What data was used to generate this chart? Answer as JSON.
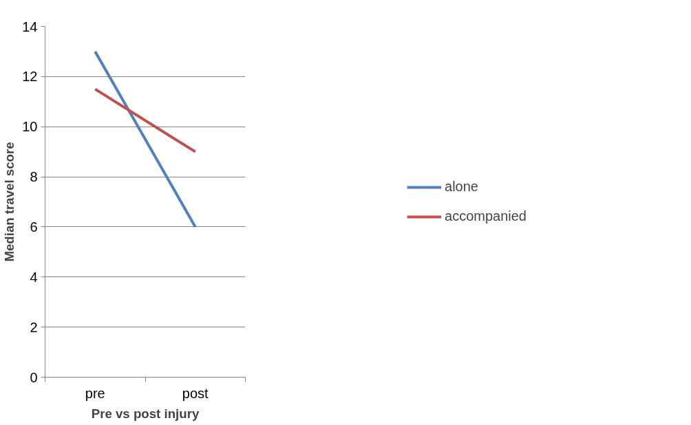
{
  "chart_data": {
    "type": "line",
    "xlabel": "Pre vs post injury",
    "ylabel": "Median travel score",
    "categories": [
      "pre",
      "post"
    ],
    "series": [
      {
        "name": "alone",
        "color": "#4f81bd",
        "values": [
          13,
          6
        ]
      },
      {
        "name": "accompanied",
        "color": "#c0504d",
        "values": [
          11.5,
          9
        ]
      }
    ],
    "ylim": [
      0,
      14
    ],
    "yticks": [
      0,
      2,
      4,
      6,
      8,
      10,
      12,
      14
    ],
    "grid": "y",
    "legend": "right",
    "marker": "none",
    "line_style": "solid"
  }
}
